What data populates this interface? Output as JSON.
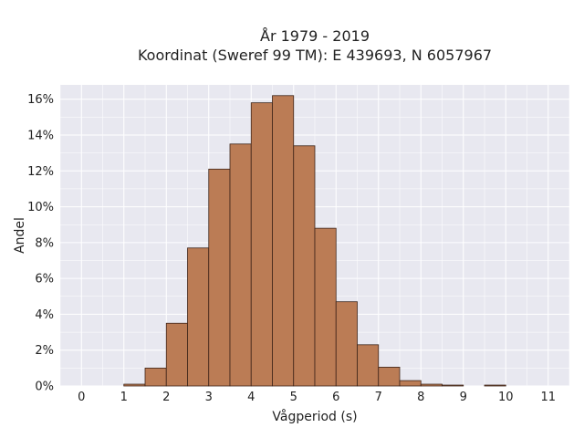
{
  "chart_data": {
    "type": "bar",
    "title_lines": [
      "År 1979 - 2019",
      "Koordinat (Sweref 99 TM): E 439693, N 6057967"
    ],
    "xlabel": "Vågperiod (s)",
    "ylabel": "Andel",
    "x_ticks": [
      "0",
      "1",
      "2",
      "3",
      "4",
      "5",
      "6",
      "7",
      "8",
      "9",
      "10",
      "11"
    ],
    "y_ticks": [
      "0%",
      "2%",
      "4%",
      "6%",
      "8%",
      "10%",
      "12%",
      "14%",
      "16%"
    ],
    "xlim": [
      -0.5,
      11.5
    ],
    "ylim": [
      0,
      16.8
    ],
    "bin_width": 0.5,
    "bins": [
      {
        "x0": 1.0,
        "value": 0.1
      },
      {
        "x0": 1.5,
        "value": 1.0
      },
      {
        "x0": 2.0,
        "value": 3.5
      },
      {
        "x0": 2.5,
        "value": 7.7
      },
      {
        "x0": 3.0,
        "value": 12.1
      },
      {
        "x0": 3.5,
        "value": 13.5
      },
      {
        "x0": 4.0,
        "value": 15.8
      },
      {
        "x0": 4.5,
        "value": 16.2
      },
      {
        "x0": 5.0,
        "value": 13.4
      },
      {
        "x0": 5.5,
        "value": 8.8
      },
      {
        "x0": 6.0,
        "value": 4.7
      },
      {
        "x0": 6.5,
        "value": 2.3
      },
      {
        "x0": 7.0,
        "value": 1.05
      },
      {
        "x0": 7.5,
        "value": 0.3
      },
      {
        "x0": 8.0,
        "value": 0.1
      },
      {
        "x0": 8.5,
        "value": 0.05
      },
      {
        "x0": 9.5,
        "value": 0.05
      }
    ],
    "grid": true,
    "colors": {
      "bar_fill": "#bb7c55",
      "bar_stroke": "#3d2418",
      "plot_background": "#e8e8f0",
      "grid": "#ffffff"
    }
  }
}
